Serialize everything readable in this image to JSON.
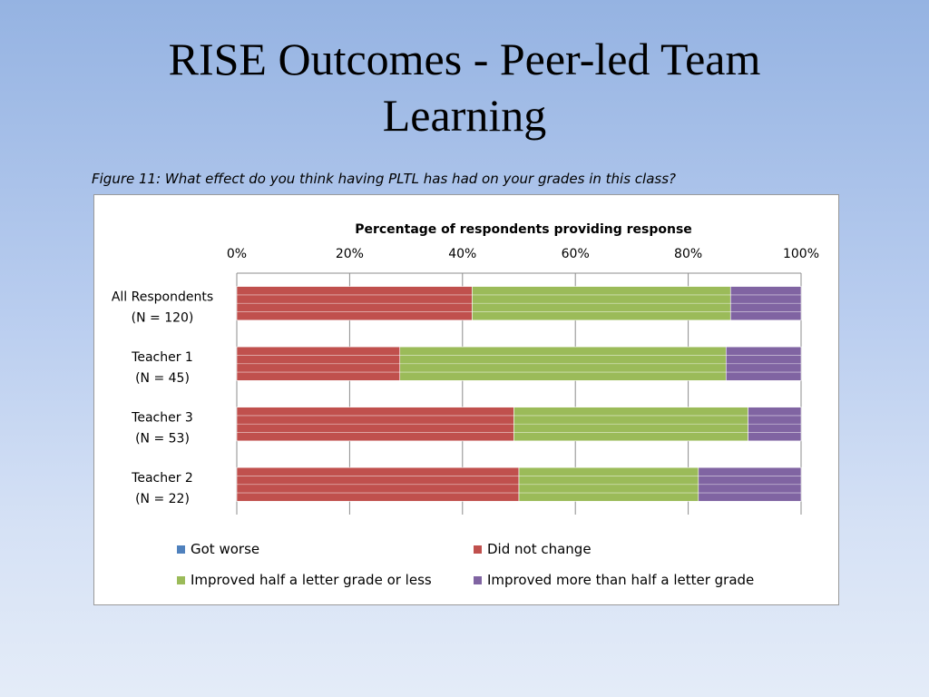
{
  "slide": {
    "title_lines": [
      "RISE Outcomes - Peer-led Team",
      "Learning"
    ],
    "caption": "Figure 11: What effect do you think having PLTL has had on your grades in this class?"
  },
  "chart_data": {
    "type": "bar",
    "orientation": "horizontal",
    "stacked": true,
    "title": "Percentage of respondents providing response",
    "categories": [
      [
        "All Respondents",
        "(N = 120)"
      ],
      [
        "Teacher 1",
        "(N = 45)"
      ],
      [
        "Teacher 3",
        "(N = 53)"
      ],
      [
        "Teacher 2",
        "(N = 22)"
      ]
    ],
    "series": [
      {
        "name": "Got worse",
        "color": "#4f81bd",
        "values": [
          0,
          0,
          0,
          0
        ]
      },
      {
        "name": "Did not change",
        "color": "#c0504d",
        "values": [
          41.7,
          28.9,
          49.1,
          50.0
        ]
      },
      {
        "name": "Improved half a letter grade or less",
        "color": "#9bbb59",
        "values": [
          45.8,
          57.8,
          41.5,
          31.8
        ]
      },
      {
        "name": "Improved more than half a letter grade",
        "color": "#8064a2",
        "values": [
          12.5,
          13.3,
          9.4,
          18.2
        ]
      }
    ],
    "x_ticks": [
      "0%",
      "20%",
      "40%",
      "60%",
      "80%",
      "100%"
    ],
    "xlim": [
      0,
      100
    ],
    "x_axis_position": "top",
    "grid": true,
    "legend_position": "bottom"
  }
}
